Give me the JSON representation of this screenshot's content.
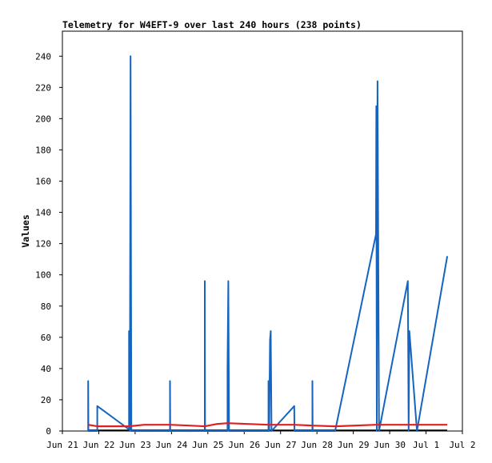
{
  "chart_data": {
    "type": "line",
    "title": "Telemetry for W4EFT-9 over last 240 hours (238 points)",
    "xlabel": "",
    "ylabel": "Values",
    "x_unit": "date",
    "xlim": [
      "Jun 21",
      "Jul 2"
    ],
    "ylim": [
      0,
      256
    ],
    "x_ticks": [
      "Jun 21",
      "Jun 22",
      "Jun 23",
      "Jun 24",
      "Jun 25",
      "Jun 26",
      "Jun 27",
      "Jun 28",
      "Jun 29",
      "Jun 30",
      "Jul 1",
      "Jul 2"
    ],
    "y_ticks": [
      0,
      20,
      40,
      60,
      80,
      100,
      120,
      140,
      160,
      180,
      200,
      220,
      240
    ],
    "grid": false,
    "legend": "none",
    "series": [
      {
        "color": "#1565c0",
        "points": [
          [
            "Jun 21 17:00",
            0
          ],
          [
            "Jun 21 17:00",
            32
          ],
          [
            "Jun 21 17:10",
            0
          ],
          [
            "Jun 21 23:00",
            0
          ],
          [
            "Jun 21 23:00",
            16
          ],
          [
            "Jun 22 20:00",
            1
          ],
          [
            "Jun 22 20:00",
            64
          ],
          [
            "Jun 22 20:30",
            0
          ],
          [
            "Jun 22 21:00",
            240
          ],
          [
            "Jun 22 21:30",
            0
          ],
          [
            "Jun 23 23:00",
            0
          ],
          [
            "Jun 23 23:00",
            32
          ],
          [
            "Jun 23 23:10",
            0
          ],
          [
            "Jun 24 22:00",
            0
          ],
          [
            "Jun 24 22:00",
            96
          ],
          [
            "Jun 24 22:10",
            0
          ],
          [
            "Jun 25 13:00",
            0
          ],
          [
            "Jun 25 13:00",
            40
          ],
          [
            "Jun 25 13:30",
            96
          ],
          [
            "Jun 25 14:00",
            0
          ],
          [
            "Jun 26 16:00",
            0
          ],
          [
            "Jun 26 16:00",
            32
          ],
          [
            "Jun 26 16:30",
            0
          ],
          [
            "Jun 26 17:00",
            58
          ],
          [
            "Jun 26 17:30",
            64
          ],
          [
            "Jun 26 18:00",
            0
          ],
          [
            "Jun 27 09:00",
            16
          ],
          [
            "Jun 27 09:10",
            0
          ],
          [
            "Jun 27 21:00",
            0
          ],
          [
            "Jun 27 21:00",
            32
          ],
          [
            "Jun 27 21:10",
            0
          ],
          [
            "Jun 28 12:00",
            0
          ],
          [
            "Jun 29 15:00",
            126
          ],
          [
            "Jun 29 15:10",
            208
          ],
          [
            "Jun 29 15:30",
            0
          ],
          [
            "Jun 29 16:00",
            224
          ],
          [
            "Jun 29 17:00",
            0
          ],
          [
            "Jun 30 12:00",
            96
          ],
          [
            "Jun 30 12:30",
            0
          ],
          [
            "Jun 30 13:00",
            64
          ],
          [
            "Jun 30 18:00",
            0
          ],
          [
            "Jul 1 14:00",
            112
          ]
        ]
      },
      {
        "color": "#e02020",
        "points": [
          [
            "Jun 21 17:00",
            4
          ],
          [
            "Jun 21 23:00",
            3
          ],
          [
            "Jun 22 20:00",
            3
          ],
          [
            "Jun 23 06:00",
            4
          ],
          [
            "Jun 23 23:00",
            4
          ],
          [
            "Jun 24 12:00",
            3.5
          ],
          [
            "Jun 24 22:00",
            3
          ],
          [
            "Jun 25 06:00",
            4.5
          ],
          [
            "Jun 25 13:00",
            5
          ],
          [
            "Jun 26 16:00",
            4
          ],
          [
            "Jun 27 09:00",
            4
          ],
          [
            "Jun 27 21:00",
            3.5
          ],
          [
            "Jun 28 12:00",
            3
          ],
          [
            "Jun 29 15:00",
            4
          ],
          [
            "Jun 30 12:00",
            4
          ],
          [
            "Jul 1 14:00",
            4
          ]
        ]
      }
    ]
  }
}
